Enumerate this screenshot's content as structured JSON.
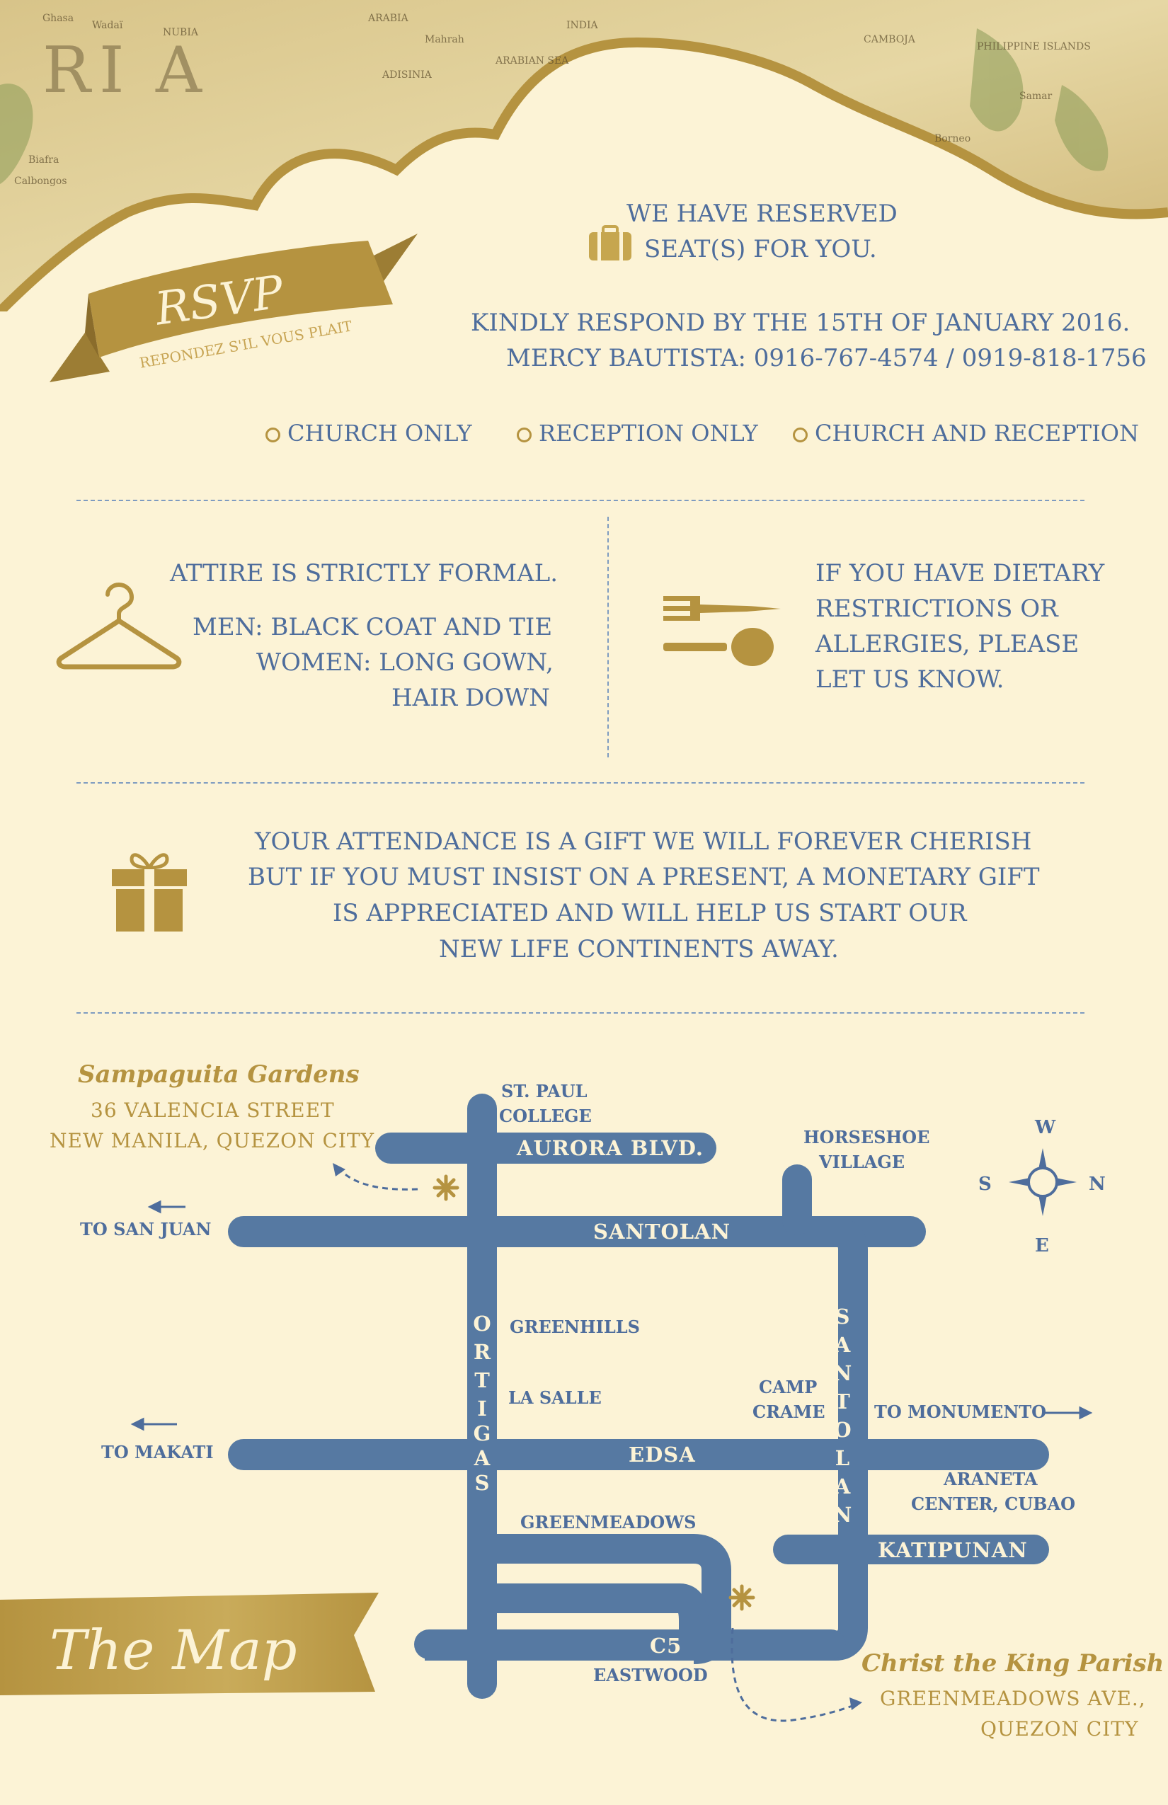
{
  "rsvp": {
    "title": "RSVP",
    "subtitle": "REPONDEZ S'IL VOUS PLAIT"
  },
  "reserved": {
    "line1": "WE HAVE RESERVED",
    "line2": "SEAT(S) FOR YOU."
  },
  "respond": {
    "line1": "KINDLY RESPOND BY THE 15TH OF JANUARY 2016.",
    "line2": "MERCY BAUTISTA:  0916-767-4574 / 0919-818-1756"
  },
  "options": [
    "CHURCH ONLY",
    "RECEPTION ONLY",
    "CHURCH AND RECEPTION"
  ],
  "attire": {
    "heading": "ATTIRE IS STRICTLY FORMAL.",
    "men": "MEN: BLACK COAT AND TIE",
    "women1": "WOMEN: LONG GOWN,",
    "women2": "HAIR DOWN"
  },
  "dietary": {
    "line1": "IF YOU HAVE DIETARY",
    "line2": "RESTRICTIONS OR",
    "line3": "ALLERGIES, PLEASE",
    "line4": "LET US KNOW."
  },
  "gift": {
    "line1": "YOUR ATTENDANCE IS A GIFT WE WILL FOREVER CHERISH",
    "line2": "BUT IF YOU MUST INSIST ON A PRESENT,  A MONETARY GIFT",
    "line3": "IS APPRECIATED AND WILL HELP US START OUR",
    "line4": "NEW LIFE CONTINENTS AWAY."
  },
  "map": {
    "banner": "The Map",
    "reception": {
      "name": "Sampaguita Gardens",
      "addr1": "36 VALENCIA STREET",
      "addr2": "NEW MANILA, QUEZON CITY"
    },
    "church": {
      "name": "Christ the King Parish",
      "addr1": "GREENMEADOWS AVE.,",
      "addr2": "QUEZON CITY"
    },
    "roads": {
      "aurora": "AURORA BLVD.",
      "santolan_h": "SANTOLAN",
      "edsa": "EDSA",
      "katipunan": "KATIPUNAN",
      "c5": "C5",
      "ortigas": [
        "O",
        "R",
        "T",
        "I",
        "G",
        "A",
        "S"
      ],
      "santolan_v": [
        "S",
        "A",
        "N",
        "T",
        "O",
        "L",
        "A",
        "N"
      ]
    },
    "places": {
      "stpaul1": "ST. PAUL",
      "stpaul2": "COLLEGE",
      "horseshoe1": "HORSESHOE",
      "horseshoe2": "VILLAGE",
      "to_san_juan": "TO SAN JUAN",
      "greenhills": "GREENHILLS",
      "lasalle": "LA SALLE",
      "camp1": "CAMP",
      "camp2": "CRAME",
      "to_monumento": "TO MONUMENTO",
      "to_makati": "TO MAKATI",
      "araneta1": "ARANETA",
      "araneta2": "CENTER, CUBAO",
      "greenmeadows": "GREENMEADOWS",
      "eastwood": "EASTWOOD"
    },
    "compass": {
      "n": "N",
      "s": "S",
      "e": "E",
      "w": "W"
    }
  },
  "colors": {
    "background": "#fcf3d6",
    "gold": "#b59340",
    "blue": "#4e6d9c",
    "road": "#5679a2"
  },
  "icons": [
    "suitcase-icon",
    "hanger-icon",
    "fork-spoon-icon",
    "gift-icon",
    "star-marker-icon",
    "compass-icon",
    "arrow-left-icon",
    "arrow-right-icon"
  ]
}
